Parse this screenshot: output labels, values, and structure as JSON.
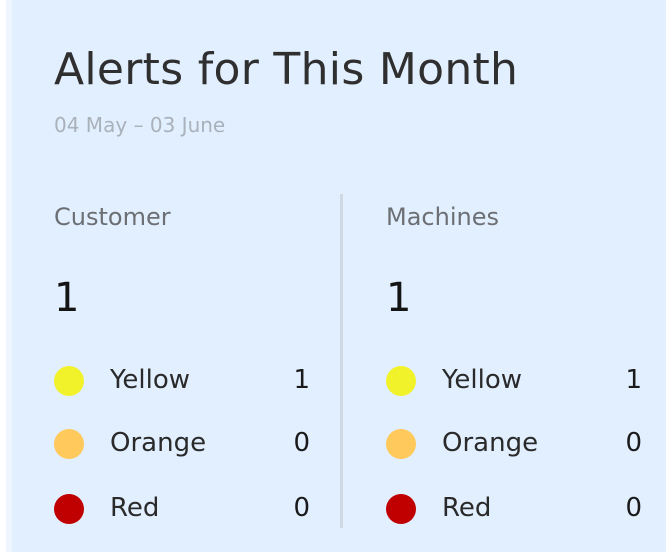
{
  "card": {
    "title": "Alerts for This Month",
    "date_range": "04 May – 03 June"
  },
  "colors": {
    "background": "#e2efff",
    "yellow": "#f2f22a",
    "orange": "#ffc95c",
    "red": "#c00000",
    "divider": "#cfd8e3"
  },
  "sections": [
    {
      "title": "Customer",
      "total": "1",
      "levels": [
        {
          "label": "Yellow",
          "count": "1",
          "icon": "yellow-dot-icon"
        },
        {
          "label": "Orange",
          "count": "0",
          "icon": "orange-dot-icon"
        },
        {
          "label": "Red",
          "count": "0",
          "icon": "red-dot-icon"
        }
      ]
    },
    {
      "title": "Machines",
      "total": "1",
      "levels": [
        {
          "label": "Yellow",
          "count": "1",
          "icon": "yellow-dot-icon"
        },
        {
          "label": "Orange",
          "count": "0",
          "icon": "orange-dot-icon"
        },
        {
          "label": "Red",
          "count": "0",
          "icon": "red-dot-icon"
        }
      ]
    }
  ]
}
